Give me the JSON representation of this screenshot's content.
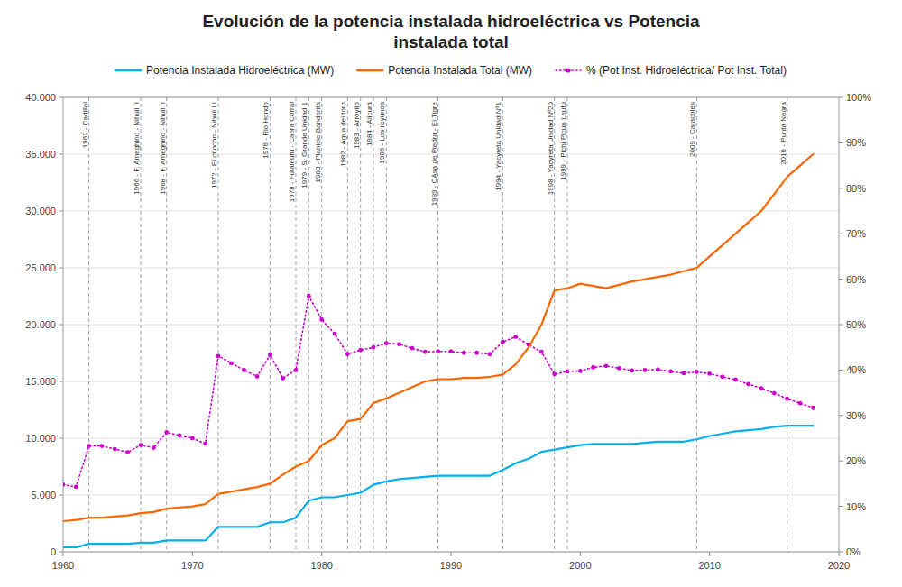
{
  "chart_data": {
    "type": "line",
    "title": "Evolución de la potencia instalada hidroeléctrica vs Potencia\ninstalada total",
    "x": [
      1960,
      1961,
      1962,
      1963,
      1964,
      1965,
      1966,
      1967,
      1968,
      1969,
      1970,
      1971,
      1972,
      1973,
      1974,
      1975,
      1976,
      1977,
      1978,
      1979,
      1980,
      1981,
      1982,
      1983,
      1984,
      1985,
      1986,
      1987,
      1988,
      1989,
      1990,
      1991,
      1992,
      1993,
      1994,
      1995,
      1996,
      1997,
      1998,
      1999,
      2000,
      2001,
      2002,
      2003,
      2004,
      2005,
      2006,
      2007,
      2008,
      2009,
      2010,
      2011,
      2012,
      2013,
      2014,
      2015,
      2016,
      2017,
      2018
    ],
    "series": [
      {
        "name": "Potencia Instalada Hidroeléctrica (MW)",
        "color": "#00b0f0",
        "line_style": "solid",
        "values": [
          400,
          400,
          700,
          700,
          700,
          700,
          800,
          800,
          1000,
          1000,
          1000,
          1000,
          2200,
          2200,
          2200,
          2200,
          2600,
          2600,
          3000,
          4500,
          4800,
          4800,
          5000,
          5200,
          5900,
          6200,
          6400,
          6500,
          6600,
          6700,
          6700,
          6700,
          6700,
          6700,
          7200,
          7800,
          8200,
          8800,
          9000,
          9200,
          9400,
          9500,
          9500,
          9500,
          9500,
          9600,
          9700,
          9700,
          9700,
          9900,
          10200,
          10400,
          10600,
          10700,
          10800,
          11000,
          11100,
          11100,
          11100
        ]
      },
      {
        "name": "Potencia Instalada Total (MW)",
        "color": "#ff6600",
        "line_style": "solid",
        "values": [
          2700,
          2800,
          3000,
          3000,
          3100,
          3200,
          3400,
          3500,
          3800,
          3900,
          4000,
          4200,
          5100,
          5300,
          5500,
          5700,
          6000,
          6800,
          7500,
          8000,
          9400,
          10000,
          11500,
          11700,
          13100,
          13500,
          14000,
          14500,
          15000,
          15200,
          15200,
          15300,
          15300,
          15400,
          15600,
          16500,
          18000,
          20000,
          23000,
          23200,
          23600,
          23400,
          23200,
          23500,
          23800,
          24000,
          24200,
          24400,
          24700,
          25000,
          26000,
          27000,
          28000,
          29000,
          30000,
          31500,
          33000,
          34000,
          35000
        ]
      },
      {
        "name": "% (Pot Inst. Hidroeléctrica/ Pot Inst. Total)",
        "color": "#cc00cc",
        "axis": "y2",
        "line_style": "dotted",
        "marker": "circle",
        "values": [
          0.148,
          0.143,
          0.233,
          0.233,
          0.226,
          0.219,
          0.235,
          0.229,
          0.263,
          0.256,
          0.25,
          0.238,
          0.431,
          0.415,
          0.4,
          0.386,
          0.433,
          0.382,
          0.4,
          0.563,
          0.511,
          0.48,
          0.435,
          0.444,
          0.45,
          0.459,
          0.457,
          0.448,
          0.44,
          0.441,
          0.441,
          0.438,
          0.438,
          0.435,
          0.462,
          0.473,
          0.456,
          0.44,
          0.391,
          0.397,
          0.398,
          0.406,
          0.409,
          0.404,
          0.399,
          0.4,
          0.401,
          0.397,
          0.393,
          0.396,
          0.392,
          0.385,
          0.379,
          0.369,
          0.36,
          0.349,
          0.337,
          0.327,
          0.317
        ]
      }
    ],
    "xlim": [
      1960,
      2020
    ],
    "xticks": [
      1960,
      1970,
      1980,
      1990,
      2000,
      2010,
      2020
    ],
    "ylim": [
      0,
      40000
    ],
    "yticks": [
      0,
      {
        "value": 5000,
        "label": "5.000"
      },
      {
        "value": 10000,
        "label": "10.000"
      },
      {
        "value": 15000,
        "label": "15.000"
      },
      {
        "value": 20000,
        "label": "20.000"
      },
      {
        "value": 25000,
        "label": "25.000"
      },
      {
        "value": 30000,
        "label": "30.000"
      },
      {
        "value": 35000,
        "label": "35.000"
      },
      {
        "value": 40000,
        "label": "40.000"
      }
    ],
    "y2lim": [
      0,
      1.0
    ],
    "y2ticks": [
      {
        "value": 0.0,
        "label": "0%"
      },
      {
        "value": 0.1,
        "label": "10%"
      },
      {
        "value": 0.2,
        "label": "20%"
      },
      {
        "value": 0.3,
        "label": "30%"
      },
      {
        "value": 0.4,
        "label": "40%"
      },
      {
        "value": 0.5,
        "label": "50%"
      },
      {
        "value": 0.6,
        "label": "60%"
      },
      {
        "value": 0.7,
        "label": "70%"
      },
      {
        "value": 0.8,
        "label": "80%"
      },
      {
        "value": 0.9,
        "label": "90%"
      },
      {
        "value": 1.0,
        "label": "100%"
      }
    ],
    "grid": true,
    "legend": "top",
    "annotations": [
      {
        "x": 1962,
        "label": "1962 - Cadillal"
      },
      {
        "x": 1966,
        "label": "1966 - F. Ameghino - Nihuil II"
      },
      {
        "x": 1968,
        "label": "1968 - F. Ameghino - Nihuil II"
      },
      {
        "x": 1972,
        "label": "1972 - El chocón - Nihuil III"
      },
      {
        "x": 1976,
        "label": "1976 - Rio Hondo"
      },
      {
        "x": 1978,
        "label": "1978 - Futaleufu - Cabra Corral"
      },
      {
        "x": 1979,
        "label": "1979 - S. Grande Unidad 1"
      },
      {
        "x": 1980,
        "label": "1980 - Planicie Banderita"
      },
      {
        "x": 1982,
        "label": "1982 - Agua del toro"
      },
      {
        "x": 1983,
        "label": "1983 - Arroyito"
      },
      {
        "x": 1984,
        "label": "1984 - Alicurá"
      },
      {
        "x": 1985,
        "label": "1985 - Los reyunos"
      },
      {
        "x": 1989,
        "label": "1989 - CAsa de Piedra - El Tigre"
      },
      {
        "x": 1994,
        "label": "1994 - Yacyreta Unidad Nº1"
      },
      {
        "x": 1998,
        "label": "1998 - Yacyreta Unidad Nº20"
      },
      {
        "x": 1999,
        "label": "1999 - Pichi Picún Leufú"
      },
      {
        "x": 2009,
        "label": "2009 - Caracoles"
      },
      {
        "x": 2016,
        "label": "2016 - Punta Negra"
      }
    ]
  }
}
